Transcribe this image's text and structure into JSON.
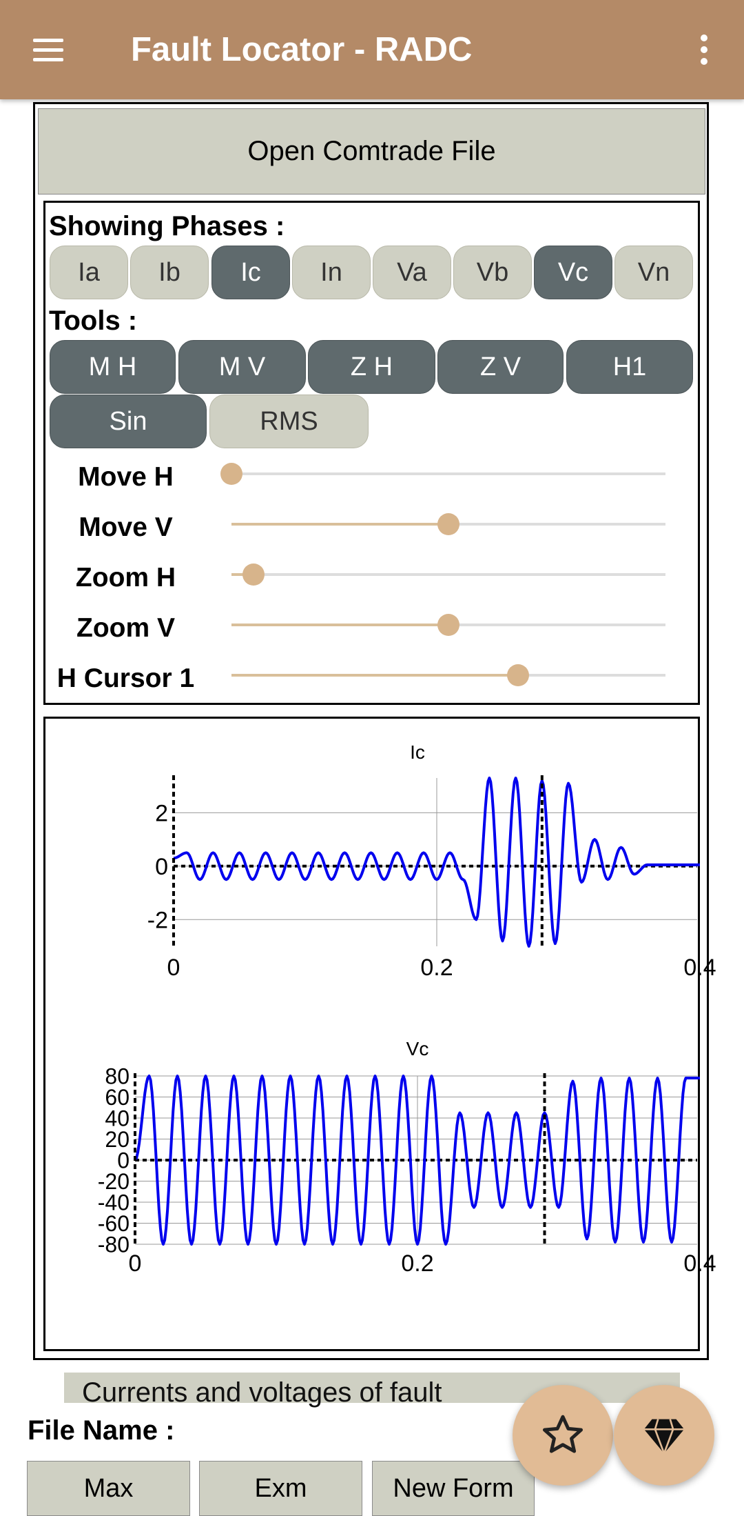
{
  "app": {
    "title": "Fault Locator - RADC"
  },
  "open_button": "Open Comtrade File",
  "phases": {
    "label": "Showing Phases  :",
    "items": [
      {
        "label": "Ia",
        "active": false
      },
      {
        "label": "Ib",
        "active": false
      },
      {
        "label": "Ic",
        "active": true
      },
      {
        "label": "In",
        "active": false
      },
      {
        "label": "Va",
        "active": false
      },
      {
        "label": "Vb",
        "active": false
      },
      {
        "label": "Vc",
        "active": true
      },
      {
        "label": "Vn",
        "active": false
      }
    ]
  },
  "tools": {
    "label": "Tools  :",
    "row1": [
      {
        "label": "M H",
        "active": true
      },
      {
        "label": "M V",
        "active": true
      },
      {
        "label": "Z H",
        "active": true
      },
      {
        "label": "Z V",
        "active": true
      },
      {
        "label": "H1",
        "active": true
      }
    ],
    "row2": [
      {
        "label": "Sin",
        "active": true
      },
      {
        "label": "RMS",
        "active": false
      }
    ]
  },
  "sliders": [
    {
      "label": "Move H",
      "value": 0.0
    },
    {
      "label": "Move V",
      "value": 0.5
    },
    {
      "label": "Zoom H",
      "value": 0.05
    },
    {
      "label": "Zoom V",
      "value": 0.5
    },
    {
      "label": "H Cursor 1",
      "value": 0.66
    }
  ],
  "charts": {
    "ic": {
      "title": "Ic",
      "yticks": [
        "2",
        "0",
        "-2"
      ],
      "xticks": [
        "0",
        "0.2",
        "0.4"
      ]
    },
    "vc": {
      "title": "Vc",
      "yticks": [
        "80",
        "60",
        "40",
        "20",
        "0",
        "-20",
        "-40",
        "-60",
        "-80"
      ],
      "xticks": [
        "0",
        "0.2",
        "0.4"
      ]
    }
  },
  "chart_data": [
    {
      "type": "line",
      "title": "Ic",
      "xlim": [
        0,
        0.4
      ],
      "ylim": [
        -3,
        3.3
      ],
      "cursors_x": [
        0,
        0.28
      ],
      "series": [
        {
          "x": [
            0,
            0.01,
            0.02,
            0.03,
            0.04,
            0.05,
            0.06,
            0.07,
            0.08,
            0.09,
            0.1,
            0.11,
            0.12,
            0.13,
            0.14,
            0.15,
            0.16,
            0.17,
            0.18,
            0.19,
            0.2,
            0.21,
            0.22,
            0.23,
            0.24,
            0.25,
            0.26,
            0.27,
            0.28,
            0.29,
            0.3,
            0.31,
            0.32,
            0.33,
            0.34,
            0.35,
            0.36,
            0.37,
            0.38,
            0.39,
            0.4
          ],
          "y": [
            0.3,
            0.5,
            -0.5,
            0.5,
            -0.5,
            0.5,
            -0.5,
            0.5,
            -0.5,
            0.5,
            -0.5,
            0.5,
            -0.5,
            0.5,
            -0.5,
            0.5,
            -0.5,
            0.5,
            -0.5,
            0.5,
            -0.5,
            0.5,
            -0.5,
            -2.0,
            3.3,
            -2.8,
            3.3,
            -3.0,
            3.2,
            -2.9,
            3.1,
            -0.6,
            1.0,
            -0.5,
            0.7,
            -0.3,
            0.05,
            0.05,
            0.05,
            0.05,
            0.05
          ]
        }
      ]
    },
    {
      "type": "line",
      "title": "Vc",
      "xlim": [
        0,
        0.4
      ],
      "ylim": [
        -80,
        80
      ],
      "cursors_x": [
        0,
        0.29
      ],
      "series": [
        {
          "x": [
            0,
            0.01,
            0.02,
            0.03,
            0.04,
            0.05,
            0.06,
            0.07,
            0.08,
            0.09,
            0.1,
            0.11,
            0.12,
            0.13,
            0.14,
            0.15,
            0.16,
            0.17,
            0.18,
            0.19,
            0.2,
            0.21,
            0.22,
            0.23,
            0.24,
            0.25,
            0.26,
            0.27,
            0.28,
            0.29,
            0.3,
            0.31,
            0.32,
            0.33,
            0.34,
            0.35,
            0.36,
            0.37,
            0.38,
            0.39,
            0.4
          ],
          "y": [
            0,
            80,
            -80,
            80,
            -80,
            80,
            -80,
            80,
            -80,
            80,
            -80,
            80,
            -80,
            80,
            -80,
            80,
            -80,
            80,
            -80,
            80,
            -80,
            80,
            -80,
            45,
            -45,
            45,
            -45,
            45,
            -45,
            45,
            -45,
            75,
            -75,
            78,
            -78,
            78,
            -78,
            78,
            -78,
            78,
            78
          ]
        }
      ]
    }
  ],
  "info_strip": "Currents and voltages of fault",
  "file_name_label": "File Name :",
  "bottom_buttons": [
    "Max",
    "Exm",
    "New Form"
  ],
  "colors": {
    "appbar": "#b48a67",
    "chip_on": "#5f6a6d",
    "chip_off": "#cfd0c3",
    "trace": "#0000ee",
    "fab": "#e1bb95"
  },
  "icons": [
    "menu-icon",
    "more-vert-icon",
    "star-icon",
    "diamond-icon"
  ]
}
